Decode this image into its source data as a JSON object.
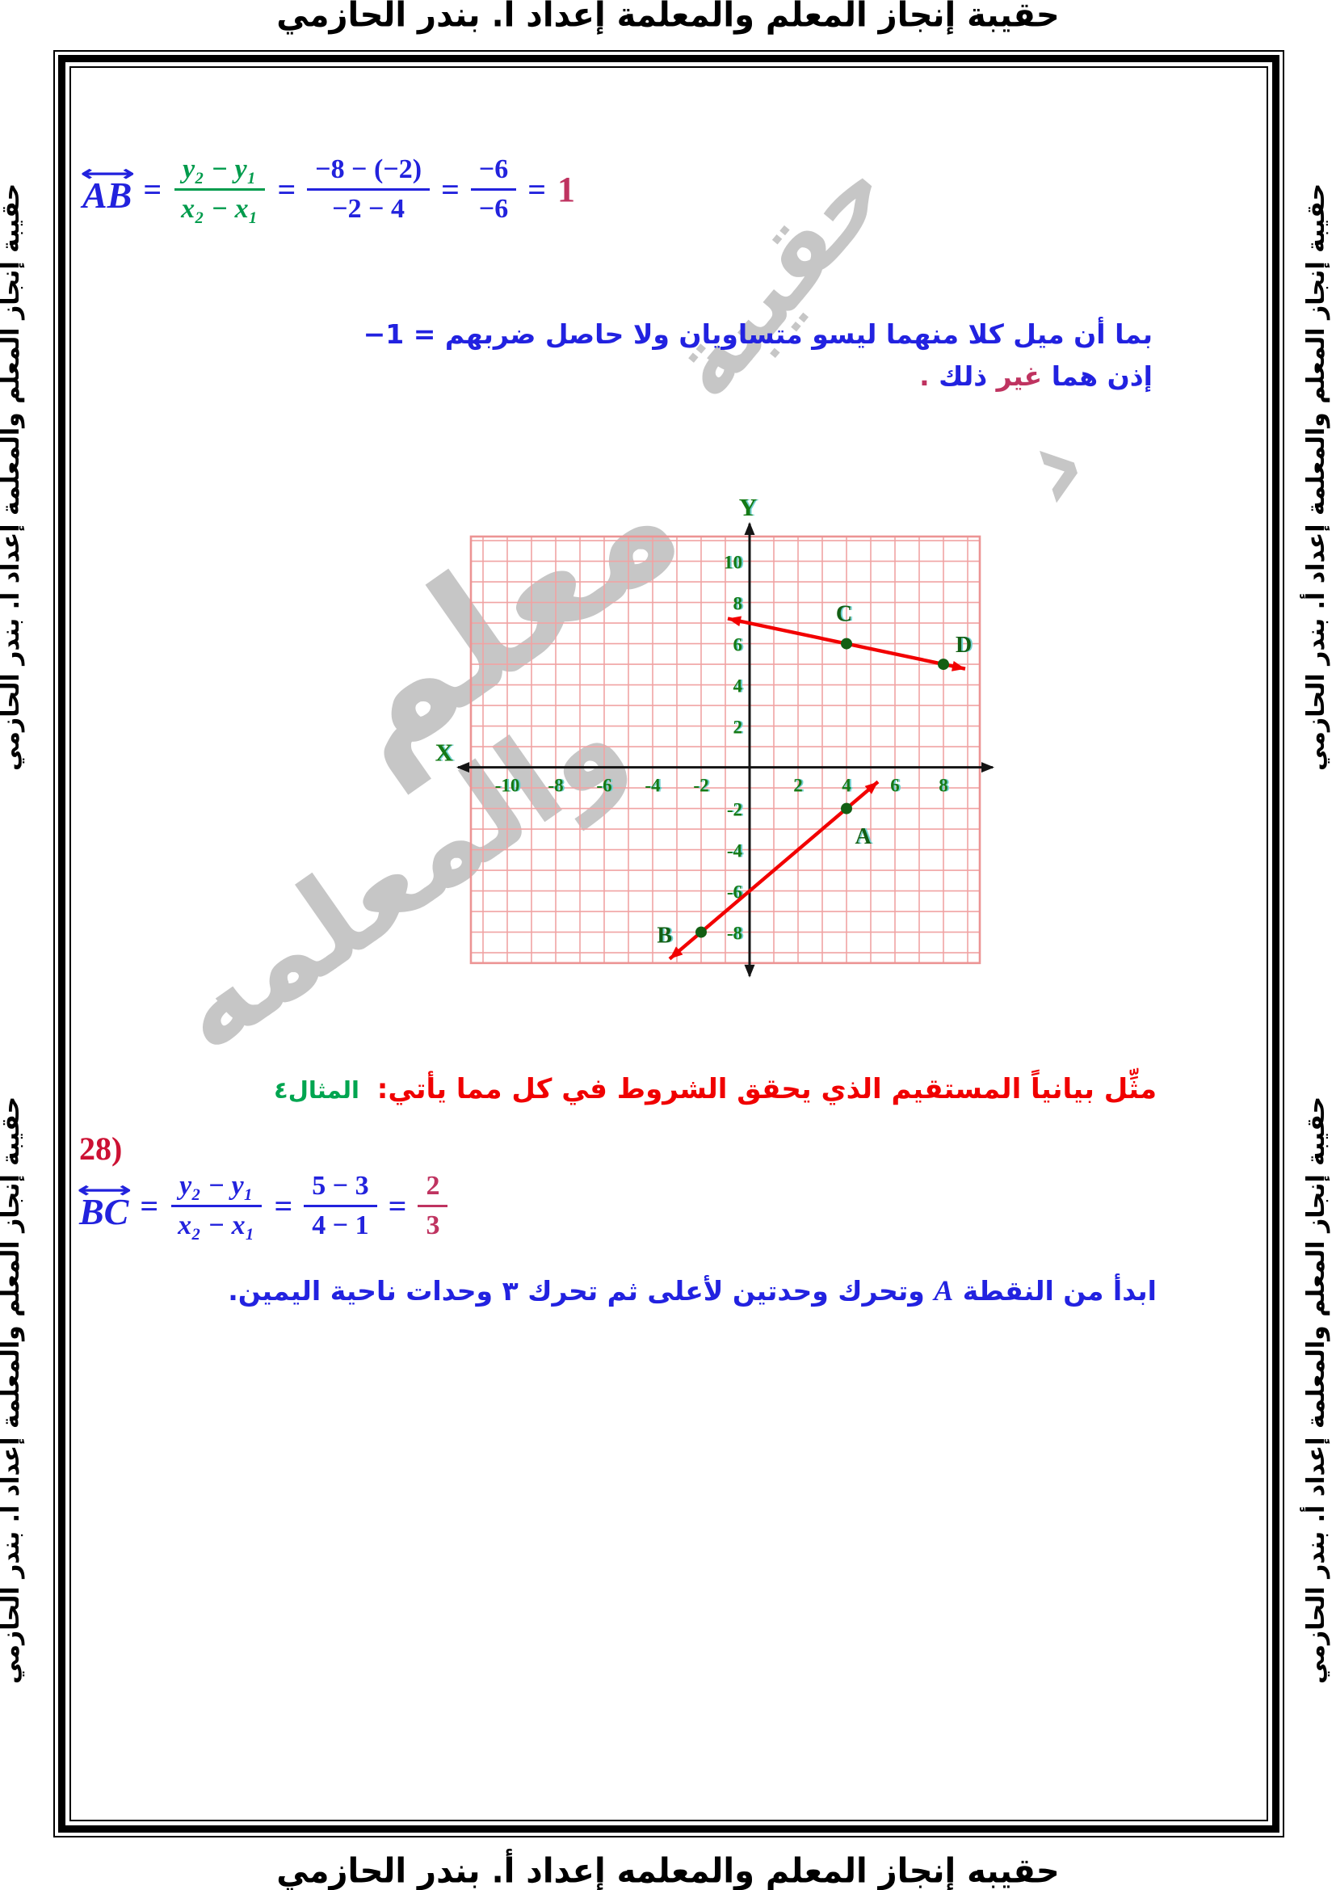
{
  "page": {
    "header_text": "حقيبة إنجاز المعلم والمعلمة إعداد أ. بندر الحازمي",
    "footer_text": "حقيبه إنجاز المعلم والمعلمه إعداد أ. بندر الحازمي",
    "side_text": "حقيبة إنجاز المعلم والمعلمة إعداد أ. بندر الحازمي"
  },
  "solution_ab": {
    "lhs": "AB",
    "arrow": "⟷",
    "eq": "=",
    "frac1_num": "y₂ − y₁",
    "frac1_den": "x₂ − x₁",
    "frac2_num": "−8 − (−2)",
    "frac2_den": "−2 − 4",
    "frac3_num": "−6",
    "frac3_den": "−6",
    "result": "1"
  },
  "conclusion": {
    "line1": "بما أن ميل كلا منهما ليسو متساويان ولا حاصل ضربهم = ",
    "line1_value": "−1",
    "line2_part1": "إذن هما ",
    "line2_part2": "غير",
    "line2_part3": " ذلك ",
    "line2_part4": "."
  },
  "example": {
    "title": "مثِّل بيانياً المستقيم الذي يحقق الشروط في كل مما يأتي:",
    "badge": "المثال٤"
  },
  "problem": {
    "number": "28)"
  },
  "solution_bc": {
    "lhs": "BC",
    "arrow": "⟷",
    "eq": "=",
    "frac1_num": "y₂ − y₁",
    "frac1_den": "x₂ − x₁",
    "frac2_num": "5 − 3",
    "frac2_den": "4 − 1",
    "result_num": "2",
    "result_den": "3"
  },
  "note": {
    "pre": "ابدأ من النقطة ",
    "var": "A",
    "post": " وتحرك وحدتين لأعلى ثم تحرك ٣ وحدات ناحية اليمين."
  },
  "watermarks": [
    {
      "text": "حقيبة"
    },
    {
      "text": "معلم"
    },
    {
      "text": "والمعلمه"
    },
    {
      "text": "›"
    }
  ],
  "colors": {
    "formula_blue": "#2222dd",
    "formula_green": "#009b4c",
    "result_crimson": "#bf3360",
    "title_red": "#f00000",
    "badge_green": "#00a550",
    "grid_pink": "#f0a3a3",
    "axis_label_green": "#157a15",
    "line_red": "#f20000",
    "watermark_grey": "#b8b8b8"
  },
  "chart_data": {
    "type": "scatter",
    "title": "",
    "xlabel": "X",
    "ylabel": "Y",
    "xlim": [
      -11.5,
      9.5
    ],
    "ylim": [
      -9.5,
      11.2
    ],
    "x_ticks": [
      -10,
      -8,
      -6,
      -4,
      -2,
      2,
      4,
      6,
      8
    ],
    "y_ticks": [
      10,
      8,
      6,
      4,
      2,
      -2,
      -4,
      -6,
      -8
    ],
    "grid": true,
    "legend": false,
    "points": [
      {
        "label": "A",
        "x": 4,
        "y": -2
      },
      {
        "label": "B",
        "x": -2,
        "y": -8
      },
      {
        "label": "C",
        "x": 4,
        "y": 6
      },
      {
        "label": "D",
        "x": 8,
        "y": 5
      }
    ],
    "lines": [
      {
        "name": "line-CD",
        "through": [
          "C",
          "D"
        ],
        "slope": -0.25,
        "from": [
          -0.9,
          7.22
        ],
        "to": [
          8.9,
          4.78
        ]
      },
      {
        "name": "line-BA",
        "through": [
          "B",
          "A"
        ],
        "slope": 1,
        "from": [
          -3.3,
          -9.3
        ],
        "to": [
          5.3,
          -0.7
        ]
      }
    ]
  }
}
